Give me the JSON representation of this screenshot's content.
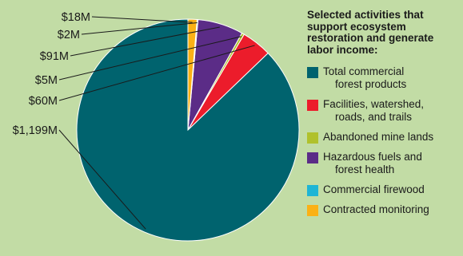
{
  "chart_data": {
    "type": "pie",
    "legend_title": "Selected activities that\nsupport ecosystem\nrestoration and generate\nlabor income:",
    "legend_position": "right",
    "slices": [
      {
        "name": "Total commercial\n    forest products",
        "value": 1199,
        "label": "$1,199M",
        "color": "#00636e"
      },
      {
        "name": "Facilities, watershed,\n    roads, and trails",
        "value": 60,
        "label": "$60M",
        "color": "#ec1c2b"
      },
      {
        "name": "Abandoned mine lands",
        "value": 5,
        "label": "$5M",
        "color": "#b0c12c"
      },
      {
        "name": "Hazardous fuels and\n    forest health",
        "value": 91,
        "label": "$91M",
        "color": "#5b2c87"
      },
      {
        "name": "Commercial firewood",
        "value": 2,
        "label": "$2M",
        "color": "#1fb5d5"
      },
      {
        "name": "Contracted monitoring",
        "value": 18,
        "label": "$18M",
        "color": "#fbb116"
      }
    ]
  }
}
